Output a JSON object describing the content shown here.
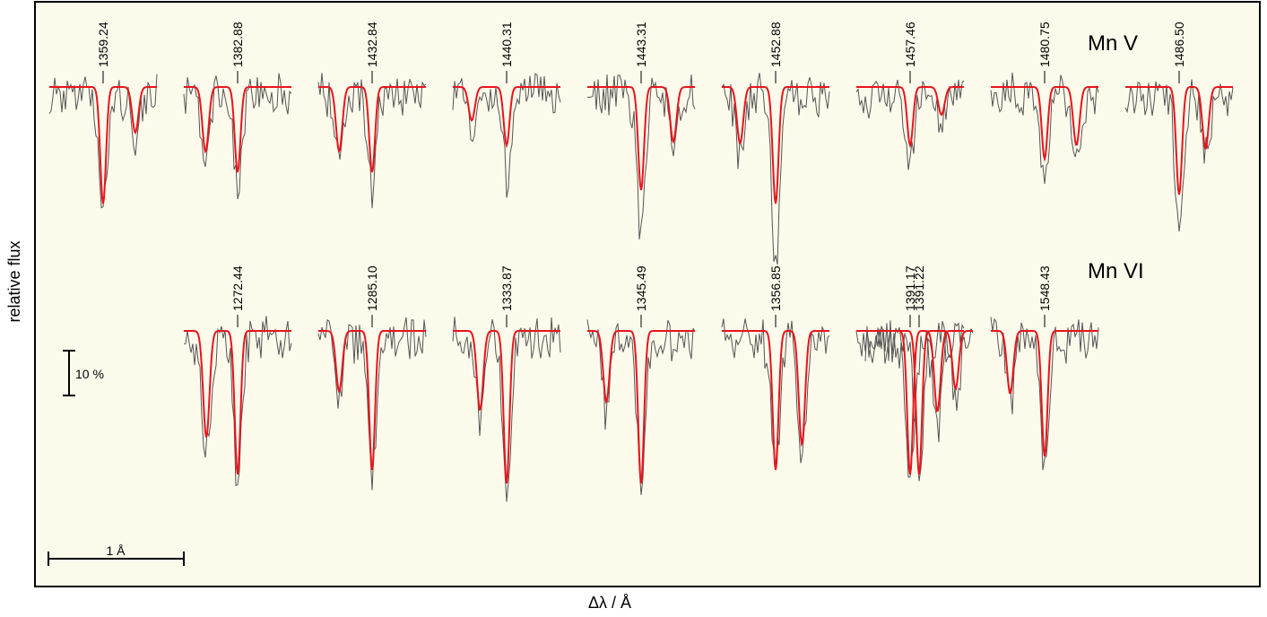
{
  "chart_data": {
    "type": "line",
    "xlabel": "Δλ / Å",
    "ylabel": "relative flux",
    "background_color": "#fcfaeb",
    "observed_color": "#555555",
    "model_color": "#e8141c",
    "grid": false,
    "legend": "none",
    "scale_bars": {
      "wavelength": "1 Å",
      "flux": "10 %"
    },
    "panels": [
      {
        "ion": "Mn V",
        "lines": [
          {
            "wavelength": "1359.24",
            "model_depth_pct": 26,
            "observed_depth_pct": 27
          },
          {
            "wavelength": "1382.88",
            "model_depth_pct": 19,
            "observed_depth_pct": 20
          },
          {
            "wavelength": "1432.84",
            "model_depth_pct": 19,
            "observed_depth_pct": 21
          },
          {
            "wavelength": "1440.31",
            "model_depth_pct": 13,
            "observed_depth_pct": 18
          },
          {
            "wavelength": "1443.31",
            "model_depth_pct": 23,
            "observed_depth_pct": 30
          },
          {
            "wavelength": "1452.88",
            "model_depth_pct": 26,
            "observed_depth_pct": 38
          },
          {
            "wavelength": "1457.46",
            "model_depth_pct": 13,
            "observed_depth_pct": 15
          },
          {
            "wavelength": "1480.75",
            "model_depth_pct": 16,
            "observed_depth_pct": 17
          },
          {
            "wavelength": "1486.50",
            "model_depth_pct": 24,
            "observed_depth_pct": 29
          }
        ]
      },
      {
        "ion": "Mn VI",
        "lines": [
          {
            "wavelength": "1272.44",
            "model_depth_pct": 32,
            "observed_depth_pct": 33
          },
          {
            "wavelength": "1285.10",
            "model_depth_pct": 31,
            "observed_depth_pct": 32
          },
          {
            "wavelength": "1333.87",
            "model_depth_pct": 34,
            "observed_depth_pct": 34
          },
          {
            "wavelength": "1345.49",
            "model_depth_pct": 34,
            "observed_depth_pct": 33
          },
          {
            "wavelength": "1356.85",
            "model_depth_pct": 31,
            "observed_depth_pct": 30
          },
          {
            "wavelength": "1391.17",
            "model_depth_pct": 32,
            "observed_depth_pct": 32
          },
          {
            "wavelength": "1391.22",
            "model_depth_pct": 32,
            "observed_depth_pct": 32
          },
          {
            "wavelength": "1548.43",
            "model_depth_pct": 28,
            "observed_depth_pct": 29
          }
        ]
      }
    ]
  }
}
